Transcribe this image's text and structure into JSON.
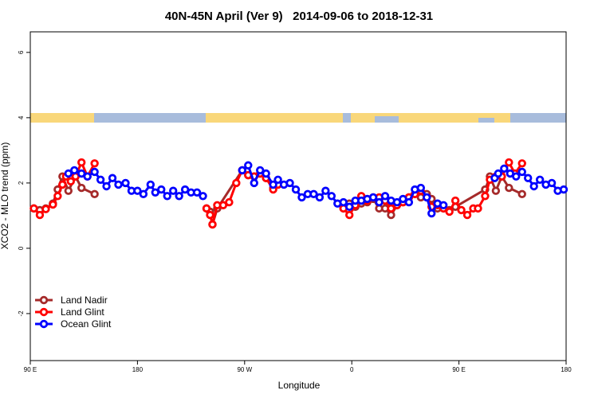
{
  "chart_data": {
    "type": "line",
    "title": "40N-45N April (Ver 9)   2014-09-06 to 2018-12-31",
    "x_label": "Longitude",
    "y_label": "XCO2 - MLO trend (ppm)",
    "xlim": [
      90,
      540
    ],
    "xticks": [
      {
        "value": 90,
        "label": "90 E"
      },
      180,
      {
        "value": 270,
        "label": "90 W"
      },
      {
        "value": 360,
        "label": "0"
      },
      {
        "value": 450,
        "label": "90 E"
      },
      {
        "value": 540,
        "label": "180"
      }
    ],
    "ylim": [
      -3.44,
      6.63
    ],
    "yticks": [
      -2,
      0,
      2,
      4,
      6
    ],
    "legend": "bottomleft",
    "series": [
      {
        "name": "Land Nadir",
        "color": "#a52a2a",
        "x": [
          93,
          98,
          103,
          109,
          113,
          117,
          122,
          128,
          133,
          144,
          200,
          238,
          241,
          243,
          247,
          268,
          273,
          278,
          283,
          288,
          294,
          298,
          320,
          353,
          358,
          363,
          368,
          373,
          378,
          383,
          388,
          393,
          398,
          403,
          408,
          413,
          418,
          423,
          427,
          432,
          437,
          442,
          447,
          472,
          476,
          481,
          486,
          492,
          503
        ],
        "values": [
          1.22,
          1.17,
          1.22,
          1.37,
          1.8,
          2.2,
          1.76,
          2.2,
          1.85,
          1.66,
          null,
          1.22,
          1.12,
          0.73,
          1.22,
          2.39,
          2.24,
          2.2,
          2.29,
          2.15,
          1.85,
          1.95,
          null,
          1.22,
          1.37,
          1.27,
          1.37,
          1.41,
          1.51,
          1.22,
          1.22,
          1.02,
          1.32,
          1.41,
          1.56,
          1.66,
          1.56,
          1.66,
          1.51,
          1.22,
          1.22,
          1.17,
          1.27,
          1.8,
          2.2,
          1.76,
          2.2,
          1.85,
          1.66
        ]
      },
      {
        "name": "Land Glint",
        "color": "#ff0000",
        "x": [
          93,
          98,
          103,
          109,
          113,
          117,
          120,
          124,
          128,
          133,
          138,
          144,
          200,
          238,
          241,
          243,
          247,
          252,
          257,
          263,
          268,
          273,
          278,
          283,
          288,
          294,
          298,
          320,
          353,
          358,
          363,
          368,
          373,
          378,
          383,
          388,
          393,
          398,
          403,
          408,
          413,
          418,
          423,
          427,
          432,
          437,
          442,
          447,
          452,
          457,
          462,
          466,
          472,
          476,
          481,
          486,
          492,
          497,
          503
        ],
        "values": [
          1.22,
          1.02,
          1.2,
          1.34,
          1.6,
          1.95,
          2.2,
          2.05,
          2.2,
          2.63,
          2.2,
          2.6,
          null,
          1.22,
          1.02,
          0.73,
          1.32,
          1.32,
          1.41,
          2.0,
          2.39,
          2.24,
          2.2,
          2.29,
          2.15,
          1.8,
          1.95,
          null,
          1.22,
          1.02,
          1.32,
          1.6,
          1.46,
          1.56,
          1.56,
          1.46,
          1.22,
          1.32,
          1.41,
          1.56,
          1.66,
          1.76,
          1.56,
          1.27,
          1.32,
          1.22,
          1.12,
          1.46,
          1.17,
          1.02,
          1.22,
          1.22,
          1.6,
          2.1,
          2.2,
          2.2,
          2.63,
          2.29,
          2.6
        ]
      },
      {
        "name": "Ocean Glint",
        "color": "#0000ff",
        "x": [
          122,
          127,
          133,
          138,
          144,
          149,
          154,
          159,
          164,
          170,
          175,
          180,
          185,
          191,
          195,
          200,
          205,
          210,
          215,
          220,
          225,
          230,
          235,
          250,
          268,
          273,
          278,
          283,
          288,
          294,
          298,
          303,
          308,
          313,
          318,
          323,
          328,
          333,
          338,
          343,
          348,
          353,
          358,
          363,
          368,
          373,
          378,
          383,
          388,
          393,
          398,
          403,
          408,
          413,
          418,
          423,
          427,
          432,
          437,
          460,
          480,
          483,
          488,
          493,
          498,
          503,
          508,
          513,
          518,
          523,
          528,
          533,
          538
        ],
        "values": [
          2.29,
          2.39,
          2.29,
          2.2,
          2.34,
          2.1,
          1.9,
          2.15,
          1.95,
          2.0,
          1.76,
          1.76,
          1.66,
          1.95,
          1.71,
          1.8,
          1.6,
          1.76,
          1.6,
          1.8,
          1.71,
          1.71,
          1.6,
          null,
          2.39,
          2.54,
          2.0,
          2.39,
          2.29,
          1.95,
          2.1,
          1.95,
          2.0,
          1.8,
          1.56,
          1.66,
          1.66,
          1.56,
          1.76,
          1.6,
          1.37,
          1.41,
          1.27,
          1.46,
          1.46,
          1.51,
          1.56,
          1.41,
          1.6,
          1.46,
          1.41,
          1.51,
          1.41,
          1.8,
          1.85,
          1.56,
          1.07,
          1.37,
          1.32,
          null,
          2.15,
          2.29,
          2.44,
          2.29,
          2.2,
          2.34,
          2.15,
          1.9,
          2.1,
          1.95,
          2.0,
          1.76,
          1.8
        ]
      }
    ]
  }
}
